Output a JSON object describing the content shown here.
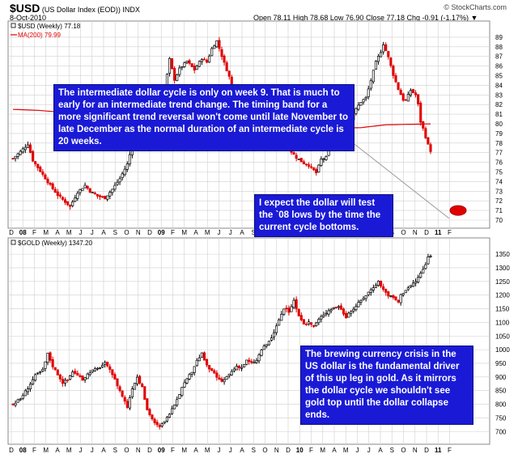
{
  "header": {
    "symbol": "$USD",
    "description": "(US Dollar Index (EOD))",
    "exchange": "INDX",
    "watermark": "© StockCharts.com",
    "date": "8-Oct-2010",
    "quote": "Open 78.11  High 78.68  Low 76.90  Close 77.18  Chg -0.91 (-1.17%) ▼"
  },
  "colors": {
    "up": "#000000",
    "down": "#e00000",
    "ma": "#e00000",
    "grid": "#cfcfcf",
    "callout_bg": "#1a1ad6",
    "callout_text": "#ffffff",
    "marker": "#e00000"
  },
  "chart_data": [
    {
      "type": "candlestick",
      "legend": "$USD (Weekly) 77.18",
      "ma_legend": "MA(200) 79.99",
      "ylim": [
        70,
        90
      ],
      "yticks": [
        70,
        71,
        72,
        73,
        74,
        75,
        76,
        77,
        78,
        79,
        80,
        81,
        82,
        83,
        84,
        85,
        86,
        87,
        88,
        89
      ],
      "x_labels": [
        "D",
        "08",
        "F",
        "M",
        "A",
        "M",
        "J",
        "J",
        "A",
        "S",
        "O",
        "N",
        "D",
        "09",
        "F",
        "M",
        "A",
        "M",
        "J",
        "J",
        "A",
        "S",
        "O",
        "N",
        "D",
        "10",
        "F",
        "M",
        "A",
        "M",
        "J",
        "J",
        "A",
        "S",
        "O",
        "N",
        "D",
        "11",
        "F"
      ],
      "bold_labels": [
        "08",
        "09",
        "10",
        "11"
      ],
      "close_path": [
        [
          0,
          76.4
        ],
        [
          3,
          77.1
        ],
        [
          6,
          77.9
        ],
        [
          8,
          76.2
        ],
        [
          11,
          75.1
        ],
        [
          15,
          73.6
        ],
        [
          18,
          72.6
        ],
        [
          21,
          71.9
        ],
        [
          23,
          71.4
        ],
        [
          26,
          72.9
        ],
        [
          29,
          73.6
        ],
        [
          31,
          73.0
        ],
        [
          34,
          72.5
        ],
        [
          37,
          72.3
        ],
        [
          40,
          73.2
        ],
        [
          43,
          74.3
        ],
        [
          46,
          75.8
        ],
        [
          48,
          77.8
        ],
        [
          50,
          79.6
        ],
        [
          52,
          80.1
        ],
        [
          55,
          78.0
        ],
        [
          58,
          79.5
        ],
        [
          61,
          83.5
        ],
        [
          63,
          86.7
        ],
        [
          65,
          84.6
        ],
        [
          67,
          85.7
        ],
        [
          70,
          86.5
        ],
        [
          73,
          85.6
        ],
        [
          76,
          86.8
        ],
        [
          78,
          86.4
        ],
        [
          80,
          87.8
        ],
        [
          82,
          88.6
        ],
        [
          85,
          86.3
        ],
        [
          87,
          84.9
        ],
        [
          89,
          82.2
        ],
        [
          91,
          80.6
        ],
        [
          95,
          79.9
        ],
        [
          98,
          79.6
        ],
        [
          101,
          79.7
        ],
        [
          103,
          78.8
        ],
        [
          106,
          78.5
        ],
        [
          109,
          78.0
        ],
        [
          111,
          77.4
        ],
        [
          114,
          76.5
        ],
        [
          117,
          75.9
        ],
        [
          119,
          75.7
        ],
        [
          122,
          74.9
        ],
        [
          124,
          76.3
        ],
        [
          126,
          76.5
        ],
        [
          128,
          78.3
        ],
        [
          130,
          79.4
        ],
        [
          132,
          80.1
        ],
        [
          134,
          79.6
        ],
        [
          136,
          80.5
        ],
        [
          138,
          81.5
        ],
        [
          140,
          82.3
        ],
        [
          142,
          82.7
        ],
        [
          144,
          84.5
        ],
        [
          146,
          86.4
        ],
        [
          148,
          87.5
        ],
        [
          149,
          88.3
        ],
        [
          150,
          87.6
        ],
        [
          151,
          86.9
        ],
        [
          153,
          85.1
        ],
        [
          155,
          83.6
        ],
        [
          157,
          82.5
        ],
        [
          158,
          82.4
        ],
        [
          160,
          83.5
        ],
        [
          162,
          83.0
        ],
        [
          163,
          82.0
        ],
        [
          164,
          80.2
        ],
        [
          165,
          79.5
        ],
        [
          167,
          77.8
        ],
        [
          168,
          77.2
        ]
      ],
      "ma_path": [
        [
          0,
          81.5
        ],
        [
          10,
          81.4
        ],
        [
          20,
          81.2
        ],
        [
          30,
          80.9
        ],
        [
          40,
          80.6
        ],
        [
          48,
          80.4
        ],
        [
          60,
          80.2
        ],
        [
          80,
          79.9
        ],
        [
          100,
          79.7
        ],
        [
          120,
          79.5
        ],
        [
          140,
          79.6
        ],
        [
          150,
          79.9
        ],
        [
          168,
          79.99
        ]
      ],
      "annotations": [
        {
          "text": "The intermediate dollar cycle is only on week 9. That is much to early for an intermediate trend change. The timing band for a more significant trend reversal won't come until late November to late December as the normal duration of an intermediate cycle is 20 weeks."
        },
        {
          "text": "I expect the dollar will test the `08 lows by the time the current cycle bottoms."
        }
      ]
    },
    {
      "type": "candlestick",
      "legend": "$GOLD (Weekly) 1347.20",
      "ylim": [
        680,
        1380
      ],
      "yticks": [
        700,
        750,
        800,
        850,
        900,
        950,
        1000,
        1050,
        1100,
        1150,
        1200,
        1250,
        1300,
        1350
      ],
      "x_labels": [
        "D",
        "08",
        "F",
        "M",
        "A",
        "M",
        "J",
        "J",
        "A",
        "S",
        "O",
        "N",
        "D",
        "09",
        "F",
        "M",
        "A",
        "M",
        "J",
        "J",
        "A",
        "S",
        "O",
        "N",
        "D",
        "10",
        "F",
        "M",
        "A",
        "M",
        "J",
        "J",
        "A",
        "S",
        "O",
        "N",
        "D",
        "11",
        "F"
      ],
      "bold_labels": [
        "08",
        "09",
        "10",
        "11"
      ],
      "close_path": [
        [
          0,
          800
        ],
        [
          3,
          820
        ],
        [
          6,
          860
        ],
        [
          9,
          905
        ],
        [
          12,
          925
        ],
        [
          14,
          985
        ],
        [
          16,
          940
        ],
        [
          18,
          910
        ],
        [
          20,
          880
        ],
        [
          22,
          890
        ],
        [
          24,
          920
        ],
        [
          26,
          905
        ],
        [
          28,
          890
        ],
        [
          31,
          920
        ],
        [
          34,
          930
        ],
        [
          37,
          950
        ],
        [
          40,
          910
        ],
        [
          42,
          870
        ],
        [
          44,
          830
        ],
        [
          46,
          790
        ],
        [
          48,
          860
        ],
        [
          50,
          900
        ],
        [
          52,
          860
        ],
        [
          54,
          780
        ],
        [
          57,
          730
        ],
        [
          59,
          715
        ],
        [
          61,
          740
        ],
        [
          63,
          760
        ],
        [
          66,
          820
        ],
        [
          68,
          860
        ],
        [
          70,
          890
        ],
        [
          72,
          920
        ],
        [
          74,
          960
        ],
        [
          76,
          985
        ],
        [
          78,
          940
        ],
        [
          80,
          920
        ],
        [
          82,
          900
        ],
        [
          84,
          880
        ],
        [
          86,
          900
        ],
        [
          88,
          920
        ],
        [
          90,
          940
        ],
        [
          92,
          935
        ],
        [
          94,
          960
        ],
        [
          96,
          950
        ],
        [
          98,
          960
        ],
        [
          100,
          1000
        ],
        [
          103,
          1030
        ],
        [
          105,
          1060
        ],
        [
          107,
          1110
        ],
        [
          109,
          1150
        ],
        [
          111,
          1140
        ],
        [
          113,
          1180
        ],
        [
          115,
          1120
        ],
        [
          117,
          1090
        ],
        [
          119,
          1100
        ],
        [
          121,
          1085
        ],
        [
          123,
          1110
        ],
        [
          125,
          1130
        ],
        [
          128,
          1150
        ],
        [
          131,
          1160
        ],
        [
          134,
          1120
        ],
        [
          137,
          1150
        ],
        [
          140,
          1180
        ],
        [
          143,
          1210
        ],
        [
          145,
          1230
        ],
        [
          147,
          1250
        ],
        [
          149,
          1220
        ],
        [
          151,
          1200
        ],
        [
          153,
          1190
        ],
        [
          155,
          1175
        ],
        [
          156,
          1200
        ],
        [
          158,
          1220
        ],
        [
          160,
          1235
        ],
        [
          162,
          1250
        ],
        [
          164,
          1280
        ],
        [
          166,
          1310
        ],
        [
          167,
          1340
        ],
        [
          168,
          1347
        ]
      ],
      "annotations": [
        {
          "text": "The brewing currency crisis in the US dollar is the fundamental driver of this up leg in gold. As it mirrors the dollar cycle we shouldn't see gold top until the dollar collapse ends."
        }
      ]
    }
  ]
}
